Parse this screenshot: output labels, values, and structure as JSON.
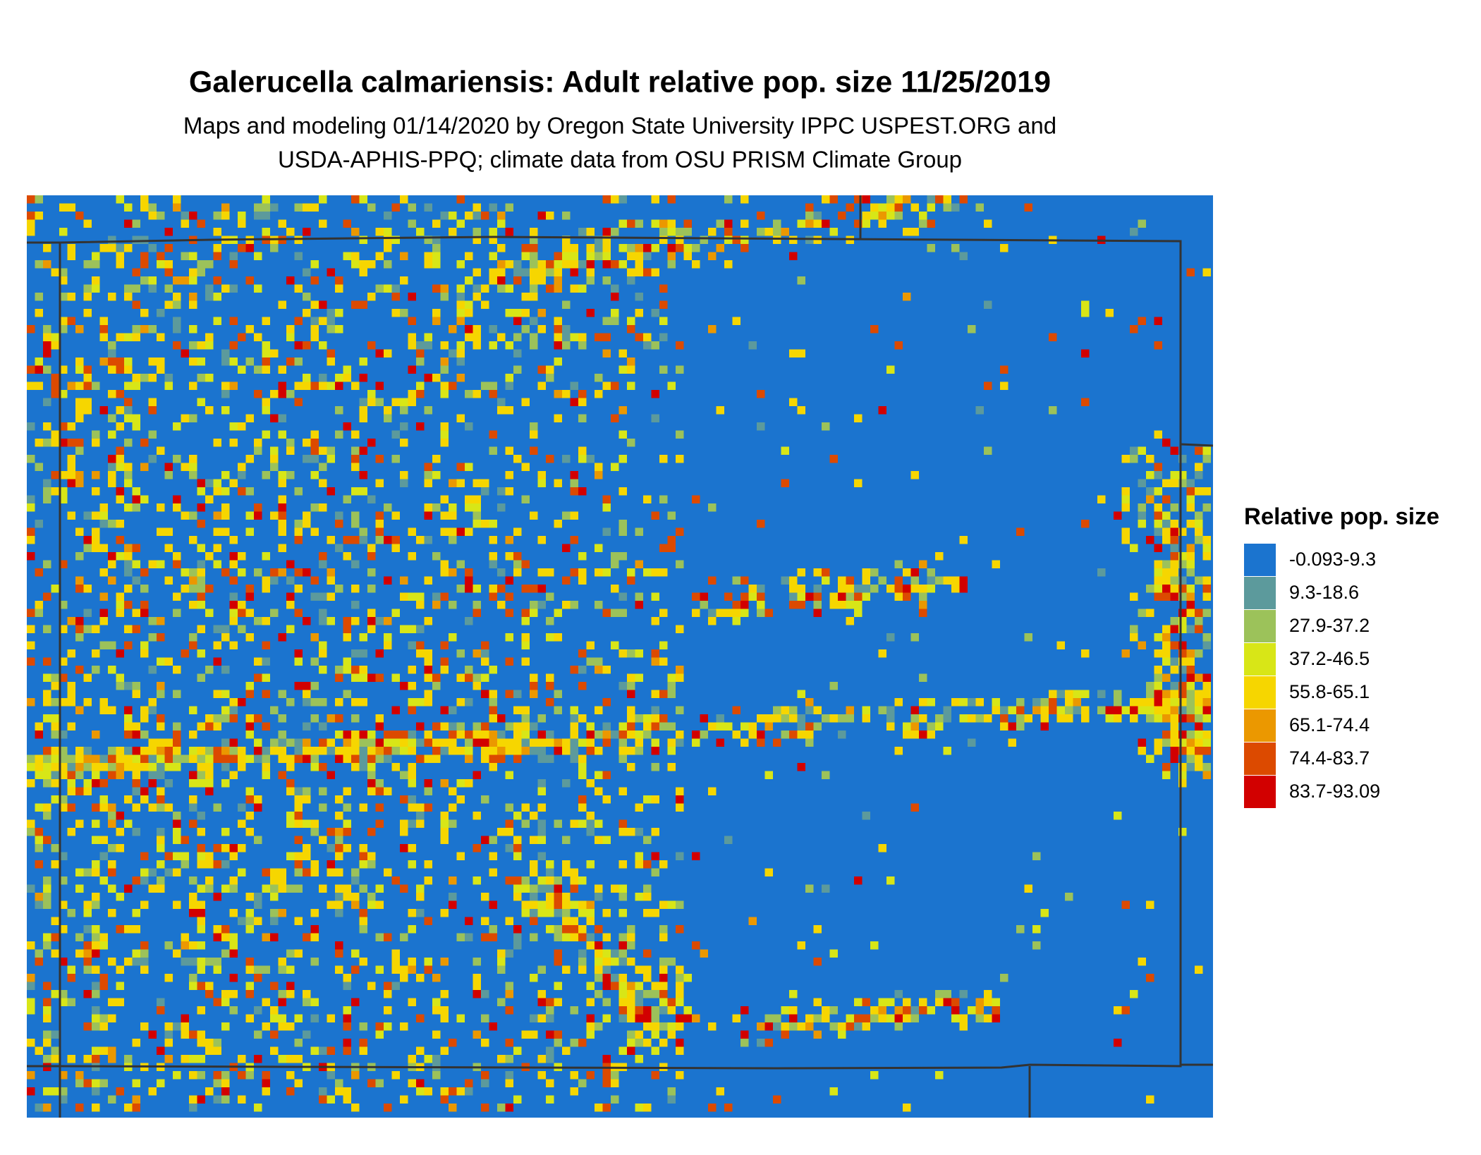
{
  "header": {
    "title": "Galerucella calmariensis: Adult relative pop. size 11/25/2019",
    "subtitle_lines": [
      "Maps and modeling 01/14/2020 by Oregon State University IPPC USPEST.ORG and",
      "USDA-APHIS-PPQ; climate data from OSU PRISM Climate Group"
    ]
  },
  "legend": {
    "title": "Relative pop. size",
    "items": [
      {
        "label": "-0.093-9.3",
        "color": "#1b74cf"
      },
      {
        "label": "9.3-18.6",
        "color": "#5c9a9c"
      },
      {
        "label": "27.9-37.2",
        "color": "#9cc25a"
      },
      {
        "label": "37.2-46.5",
        "color": "#d8e617"
      },
      {
        "label": "55.8-65.1",
        "color": "#f6d600"
      },
      {
        "label": "65.1-74.4",
        "color": "#eb9800"
      },
      {
        "label": "74.4-83.7",
        "color": "#dc4a00"
      },
      {
        "label": "83.7-93.09",
        "color": "#d20000"
      }
    ]
  }
}
